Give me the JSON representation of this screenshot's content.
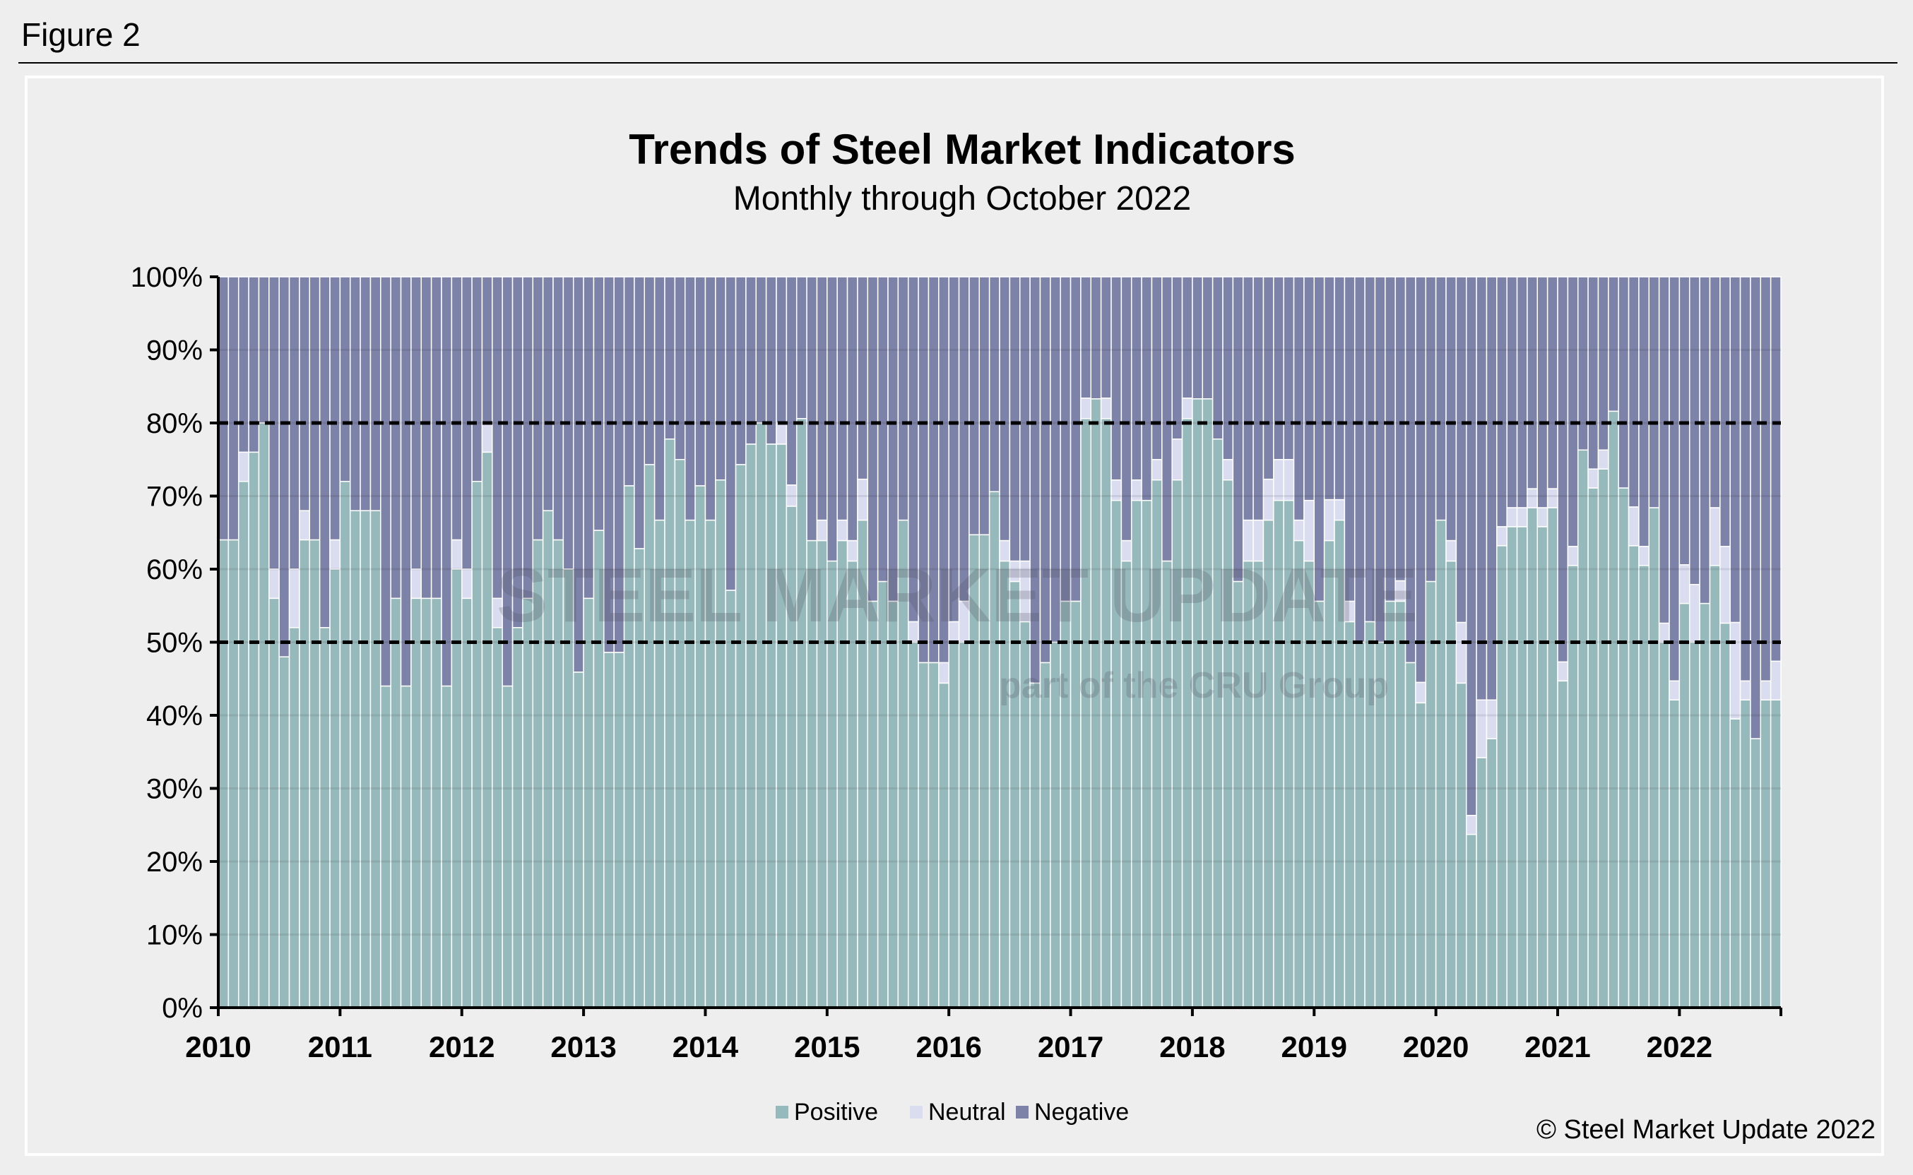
{
  "figure_label": "Figure 2",
  "copyright": "© Steel Market Update 2022",
  "watermark": {
    "line1": "STEEL MARKET UPDATE",
    "line2": "part of the CRU Group"
  },
  "colors": {
    "positive": "#96b9bb",
    "neutral": "#dadcf0",
    "negative": "#7d82a8",
    "background": "#eeeeee"
  },
  "chart_data": {
    "type": "bar",
    "stacked": true,
    "percent_stacked": true,
    "title": "Trends of Steel Market Indicators",
    "subtitle": "Monthly through October 2022",
    "xlabel": "",
    "ylabel": "",
    "ylim": [
      0,
      100
    ],
    "y_ticks": [
      "0%",
      "10%",
      "20%",
      "30%",
      "40%",
      "50%",
      "60%",
      "70%",
      "80%",
      "90%",
      "100%"
    ],
    "x_ticks": [
      "2010",
      "2011",
      "2012",
      "2013",
      "2014",
      "2015",
      "2016",
      "2017",
      "2018",
      "2019",
      "2020",
      "2021",
      "2022"
    ],
    "x_start": "2010-01",
    "x_end": "2022-10",
    "frequency": "monthly",
    "reference_lines": [
      50,
      80
    ],
    "grid": true,
    "legend_position": "bottom",
    "series": [
      {
        "name": "Positive",
        "values": [
          64,
          64,
          72,
          76,
          80,
          56,
          48,
          52,
          64,
          64,
          52,
          60,
          72,
          68,
          68,
          68,
          44,
          56,
          44,
          56,
          56,
          56,
          44,
          60,
          56,
          72,
          76,
          52,
          44,
          52,
          56,
          64,
          68,
          64,
          60,
          45.9,
          56,
          65.3,
          48.6,
          48.6,
          71.4,
          62.8,
          74.3,
          66.7,
          77.8,
          75,
          66.7,
          71.4,
          66.7,
          72.2,
          57.1,
          74.3,
          77.1,
          80,
          77.1,
          77.1,
          68.6,
          80.6,
          63.9,
          63.9,
          61.1,
          63.9,
          61.1,
          66.7,
          55.6,
          58.3,
          55.6,
          66.7,
          50,
          47.2,
          47.2,
          44.4,
          50,
          50,
          64.7,
          64.7,
          70.6,
          61.1,
          58.3,
          52.8,
          44.4,
          47.2,
          50,
          55.6,
          55.6,
          80.6,
          83.3,
          80.6,
          69.4,
          61.1,
          69.4,
          69.4,
          72.2,
          61.1,
          72.2,
          80.6,
          83.3,
          83.3,
          77.8,
          72.2,
          58.3,
          61.1,
          61.1,
          66.7,
          69.4,
          69.4,
          63.9,
          61.1,
          55.6,
          63.9,
          66.7,
          52.8,
          50,
          52.8,
          50,
          55.6,
          55.6,
          47.2,
          41.7,
          58.3,
          66.7,
          61.1,
          44.4,
          23.7,
          34.2,
          36.8,
          63.2,
          65.8,
          65.8,
          68.4,
          65.8,
          68.4,
          44.7,
          60.5,
          76.3,
          71.1,
          73.7,
          81.6,
          71.1,
          63.2,
          60.5,
          68.4,
          50,
          42.1,
          55.3,
          50,
          55.3,
          60.5,
          52.6,
          39.5,
          42.1,
          36.8,
          42.1,
          42.1
        ]
      },
      {
        "name": "Neutral",
        "values": [
          0,
          0,
          4,
          0,
          0,
          4,
          0,
          8,
          4,
          0,
          0,
          4,
          0,
          0,
          0,
          0,
          0,
          0,
          0,
          4,
          0,
          0,
          0,
          4,
          4,
          0,
          4,
          4,
          0,
          0,
          0,
          0,
          0,
          0,
          0,
          0,
          0,
          0,
          0,
          0,
          0,
          0,
          0,
          0,
          0,
          0,
          0,
          0,
          0,
          0,
          0,
          0,
          0,
          0,
          0,
          2.9,
          2.9,
          0,
          0,
          2.8,
          0,
          2.8,
          2.8,
          5.6,
          0,
          0,
          0,
          0,
          2.8,
          0,
          0,
          2.8,
          2.8,
          5.6,
          0,
          0,
          0,
          2.8,
          2.8,
          8.3,
          0,
          0,
          0,
          0,
          0,
          2.8,
          0,
          2.8,
          2.8,
          2.8,
          2.8,
          0,
          2.8,
          0,
          5.6,
          2.8,
          0,
          0,
          0,
          2.8,
          0,
          5.6,
          5.6,
          5.6,
          5.6,
          5.6,
          2.8,
          8.3,
          0,
          5.6,
          2.8,
          2.8,
          0,
          0,
          0,
          0,
          2.8,
          0,
          2.8,
          0,
          0,
          2.8,
          8.3,
          2.6,
          7.9,
          5.3,
          2.6,
          2.6,
          2.6,
          2.6,
          2.6,
          2.6,
          2.6,
          2.6,
          0,
          2.6,
          2.6,
          0,
          0,
          5.3,
          2.6,
          0,
          2.6,
          2.6,
          5.3,
          7.9,
          0,
          7.9,
          10.5,
          13.2,
          2.6,
          0,
          2.6,
          5.3
        ]
      },
      {
        "name": "Negative",
        "values": "remainder to 100%"
      }
    ]
  }
}
